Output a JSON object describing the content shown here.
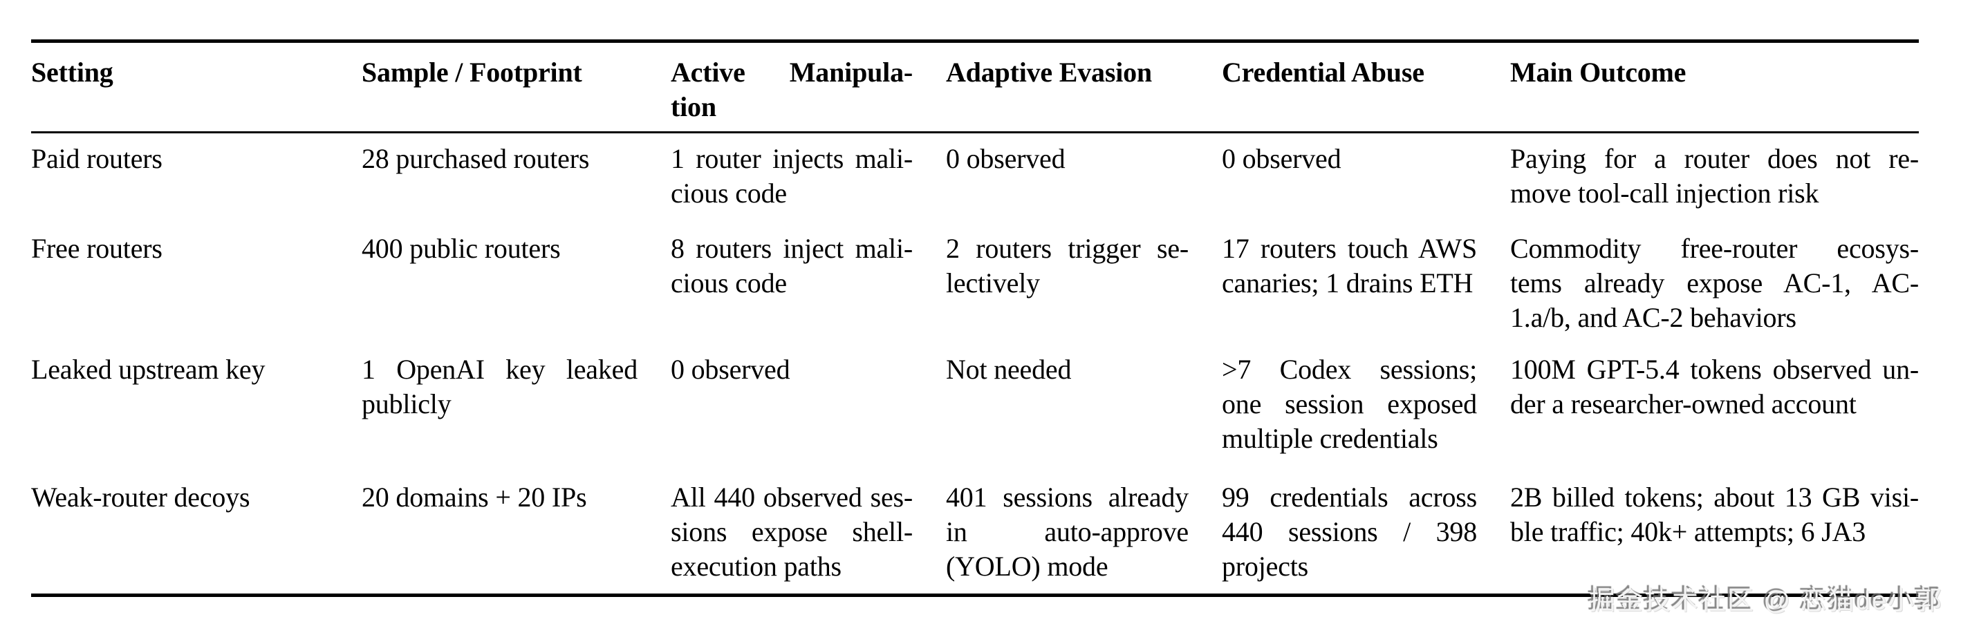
{
  "colors": {
    "background": "#ffffff",
    "text": "#000000",
    "rule": "#000000",
    "watermark": "#f4f4f4"
  },
  "table": {
    "header": [
      {
        "lines": [
          "Setting"
        ]
      },
      {
        "lines": [
          "Sample / Footprint"
        ]
      },
      {
        "lines": [
          "Active Manipula-",
          "tion"
        ]
      },
      {
        "lines": [
          "Adaptive Evasion"
        ]
      },
      {
        "lines": [
          "Credential Abuse"
        ]
      },
      {
        "lines": [
          "Main Outcome"
        ]
      }
    ],
    "rows": [
      {
        "cells": [
          [
            "Paid routers"
          ],
          [
            "28 purchased routers"
          ],
          [
            "1 router injects mali-",
            "cious code"
          ],
          [
            "0 observed"
          ],
          [
            "0 observed"
          ],
          [
            "Paying for a router does not re-",
            "move tool-call injection risk"
          ]
        ]
      },
      {
        "cells": [
          [
            "Free routers"
          ],
          [
            "400 public routers"
          ],
          [
            "8 routers inject mali-",
            "cious code"
          ],
          [
            "2 routers trigger se-",
            "lectively"
          ],
          [
            "17 routers touch AWS",
            "canaries; 1 drains ETH"
          ],
          [
            "Commodity free-router ecosys-",
            "tems already expose AC-1, AC-",
            "1.a/b, and AC-2 behaviors"
          ]
        ]
      },
      {
        "cells": [
          [
            "Leaked upstream key"
          ],
          [
            "1 OpenAI key leaked",
            "publicly"
          ],
          [
            "0 observed"
          ],
          [
            "Not needed"
          ],
          [
            ">7 Codex sessions;",
            "one session exposed",
            "multiple credentials"
          ],
          [
            "100M GPT-5.4 tokens observed un-",
            "der a researcher-owned account"
          ]
        ]
      },
      {
        "cells": [
          [
            "Weak-router decoys"
          ],
          [
            "20 domains + 20 IPs"
          ],
          [
            "All 440 observed ses-",
            "sions expose shell-",
            "execution paths"
          ],
          [
            "401 sessions already",
            "in auto-approve",
            "(YOLO) mode"
          ],
          [
            "99 credentials across",
            "440 sessions / 398",
            "projects"
          ],
          [
            "2B billed tokens; about 13 GB visi-",
            "ble traffic; 40k+ attempts; 6 JA3"
          ]
        ]
      }
    ]
  },
  "watermark": {
    "text": "掘金技术社区 @ 恋猫de小郭"
  }
}
